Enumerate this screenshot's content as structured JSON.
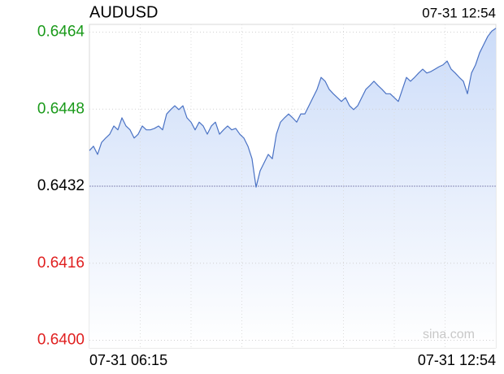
{
  "chart_data": {
    "type": "line",
    "title": "AUDUSD",
    "timestamp": "07-31 12:54",
    "x_labels": [
      "07-31 06:15",
      "07-31 12:54"
    ],
    "watermark": "sina.com",
    "color": "#4a72c4",
    "prev_close": 0.6432,
    "up_color": "#1a9a1a",
    "down_color": "#e02020",
    "flat_color": "#000000",
    "ylim": [
      0.63984,
      0.64656
    ],
    "yticks": [
      0.6464,
      0.6448,
      0.6432,
      0.6416,
      0.64
    ],
    "ytick_labels": [
      "0.6464",
      "0.6448",
      "0.6432",
      "0.6416",
      "0.6400"
    ],
    "x_divisions": 8,
    "grid": true,
    "values": [
      0.64394,
      0.64403,
      0.64386,
      0.64411,
      0.6442,
      0.64428,
      0.64445,
      0.64437,
      0.64462,
      0.64445,
      0.64437,
      0.6442,
      0.64428,
      0.64445,
      0.64437,
      0.64437,
      0.6444,
      0.64445,
      0.64437,
      0.6447,
      0.64479,
      0.64487,
      0.64479,
      0.64487,
      0.64462,
      0.64453,
      0.64437,
      0.64453,
      0.64445,
      0.64428,
      0.64445,
      0.64453,
      0.64428,
      0.64437,
      0.64445,
      0.64437,
      0.6444,
      0.64428,
      0.6442,
      0.64403,
      0.64377,
      0.64318,
      0.64352,
      0.64369,
      0.64386,
      0.64377,
      0.64428,
      0.64453,
      0.64462,
      0.6447,
      0.64462,
      0.64453,
      0.6447,
      0.6447,
      0.64487,
      0.64504,
      0.64521,
      0.64546,
      0.64538,
      0.64521,
      0.64512,
      0.64504,
      0.64496,
      0.64504,
      0.64487,
      0.64479,
      0.64487,
      0.64504,
      0.64521,
      0.64529,
      0.64538,
      0.64529,
      0.64521,
      0.64512,
      0.64512,
      0.64504,
      0.64496,
      0.64521,
      0.64546,
      0.64538,
      0.64546,
      0.64555,
      0.64563,
      0.64555,
      0.64558,
      0.64563,
      0.64568,
      0.64572,
      0.6458,
      0.64563,
      0.64555,
      0.64546,
      0.64538,
      0.64512,
      0.64555,
      0.64572,
      0.64597,
      0.64614,
      0.64631,
      0.64642,
      0.64648
    ]
  }
}
